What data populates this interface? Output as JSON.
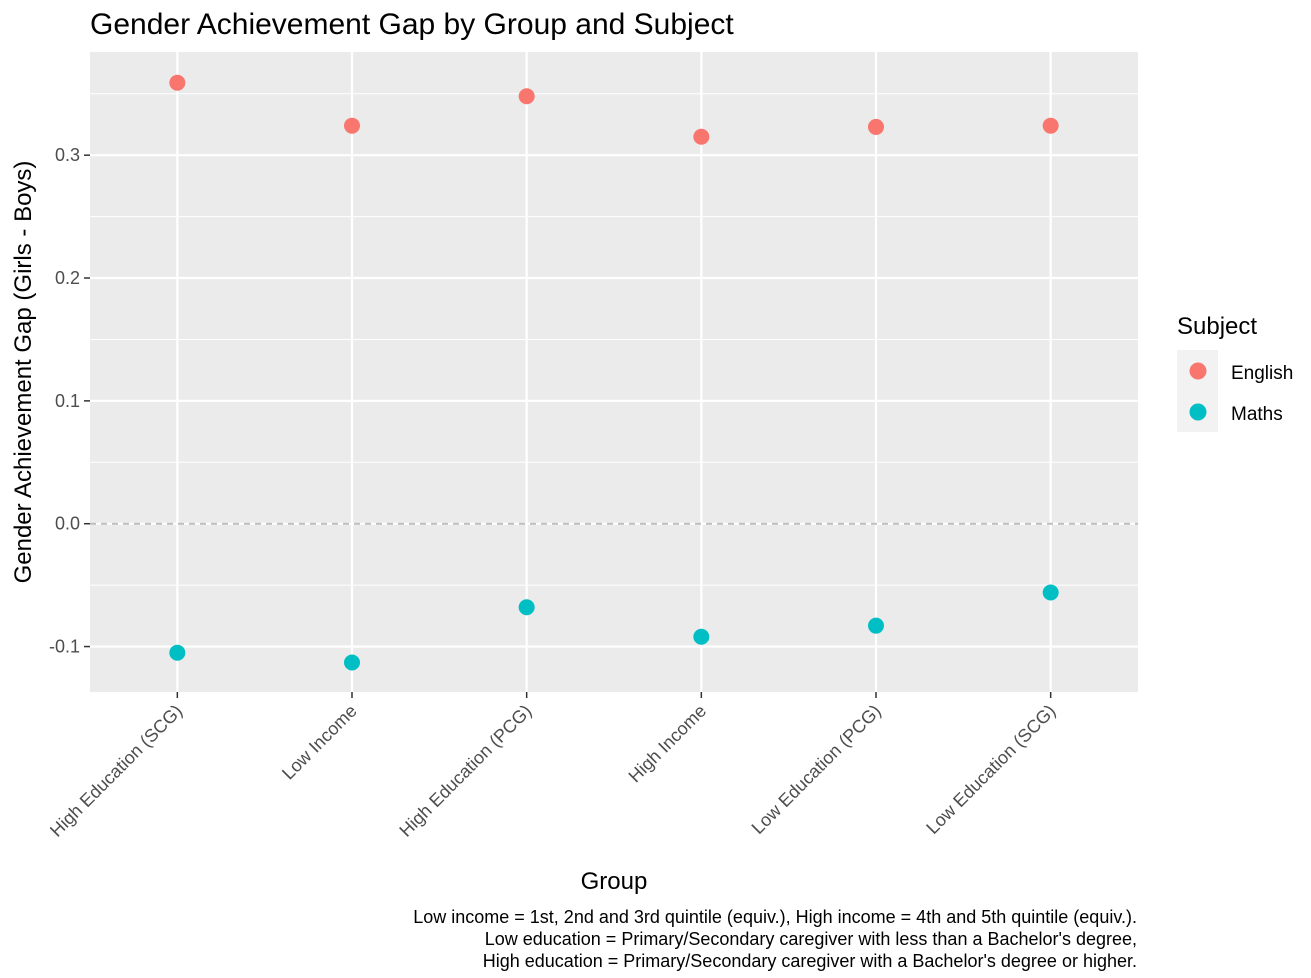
{
  "chart_data": {
    "type": "scatter",
    "title": "Gender Achievement Gap by Group and Subject",
    "xlabel": "Group",
    "ylabel": "Gender Achievement Gap (Girls - Boys)",
    "categories": [
      "High Education (SCG)",
      "Low Income",
      "High Education (PCG)",
      "High Income",
      "Low Education (PCG)",
      "Low Education (SCG)"
    ],
    "series": [
      {
        "name": "English",
        "color": "#F8766D",
        "values": [
          0.359,
          0.324,
          0.348,
          0.315,
          0.323,
          0.324
        ]
      },
      {
        "name": "Maths",
        "color": "#00BFC4",
        "values": [
          -0.105,
          -0.113,
          -0.068,
          -0.092,
          -0.083,
          -0.056
        ]
      }
    ],
    "ylim": [
      -0.137,
      0.384
    ],
    "yticks": [
      -0.1,
      0.0,
      0.1,
      0.2,
      0.3
    ],
    "ytick_labels": [
      "-0.1",
      "0.0",
      "0.1",
      "0.2",
      "0.3"
    ],
    "reference_line": {
      "y": 0,
      "style": "dashed",
      "color": "#bdbdbd"
    },
    "legend": {
      "title": "Subject",
      "position": "right"
    },
    "grid": true,
    "panel_background": "#EBEBEB",
    "caption": [
      "Low income = 1st, 2nd and 3rd quintile (equiv.), High income = 4th and 5th quintile (equiv.).",
      "Low education = Primary/Secondary caregiver with less than a Bachelor's degree, ",
      "High education = Primary/Secondary caregiver with a Bachelor's degree or higher."
    ]
  }
}
